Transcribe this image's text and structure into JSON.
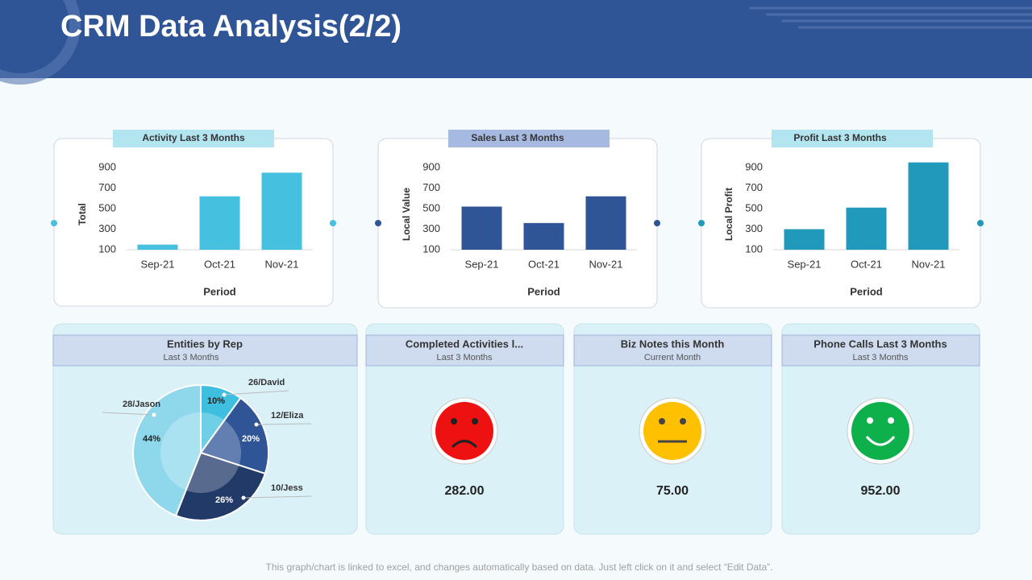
{
  "title": "CRM Data Analysis(2/2)",
  "chart_data": [
    {
      "type": "bar",
      "title": "Activity Last 3 Months",
      "x_label": "Period",
      "y_label": "Total",
      "categories": [
        "Sep-21",
        "Oct-21",
        "Nov-21"
      ],
      "values": [
        150,
        620,
        850
      ],
      "color": "#45c1df",
      "ylim": [
        100,
        900
      ],
      "yticks": [
        100,
        300,
        500,
        700,
        900
      ]
    },
    {
      "type": "bar",
      "title": "Sales Last 3 Months",
      "x_label": "Period",
      "y_label": "Local Value",
      "categories": [
        "Sep-21",
        "Oct-21",
        "Nov-21"
      ],
      "values": [
        520,
        360,
        620
      ],
      "color": "#2f5597",
      "ylim": [
        100,
        900
      ],
      "yticks": [
        100,
        300,
        500,
        700,
        900
      ]
    },
    {
      "type": "bar",
      "title": "Profit Last 3 Months",
      "x_label": "Period",
      "y_label": "Local Profit",
      "categories": [
        "Sep-21",
        "Oct-21",
        "Nov-21"
      ],
      "values": [
        300,
        510,
        950
      ],
      "color": "#2199bb",
      "ylim": [
        100,
        900
      ],
      "yticks": [
        100,
        300,
        500,
        700,
        900
      ]
    },
    {
      "type": "pie",
      "title": "Entities by Rep",
      "subtitle": "Last 3 Months",
      "categories": [
        "26/David",
        "12/Eliza",
        "10/Jess",
        "28/Jason"
      ],
      "values": [
        10,
        20,
        26,
        44
      ],
      "value_labels": [
        "10%",
        "20%",
        "26%",
        "44%"
      ],
      "colors": [
        "#3fbfdf",
        "#2f5597",
        "#213a68",
        "#8fd8ec"
      ]
    }
  ],
  "cards": [
    {
      "title": "Completed Activities l...",
      "subtitle": "Last 3 Months",
      "value": "282.00"
    },
    {
      "title": "Biz Notes this Month",
      "subtitle": "Current Month",
      "value": "75.00"
    },
    {
      "title": "Phone Calls Last 3 Months",
      "subtitle": "Last 3 Months",
      "value": "952.00"
    }
  ],
  "footer": "This graph/chart is linked to excel, and changes automatically based on data. Just left click on it and select “Edit Data”."
}
